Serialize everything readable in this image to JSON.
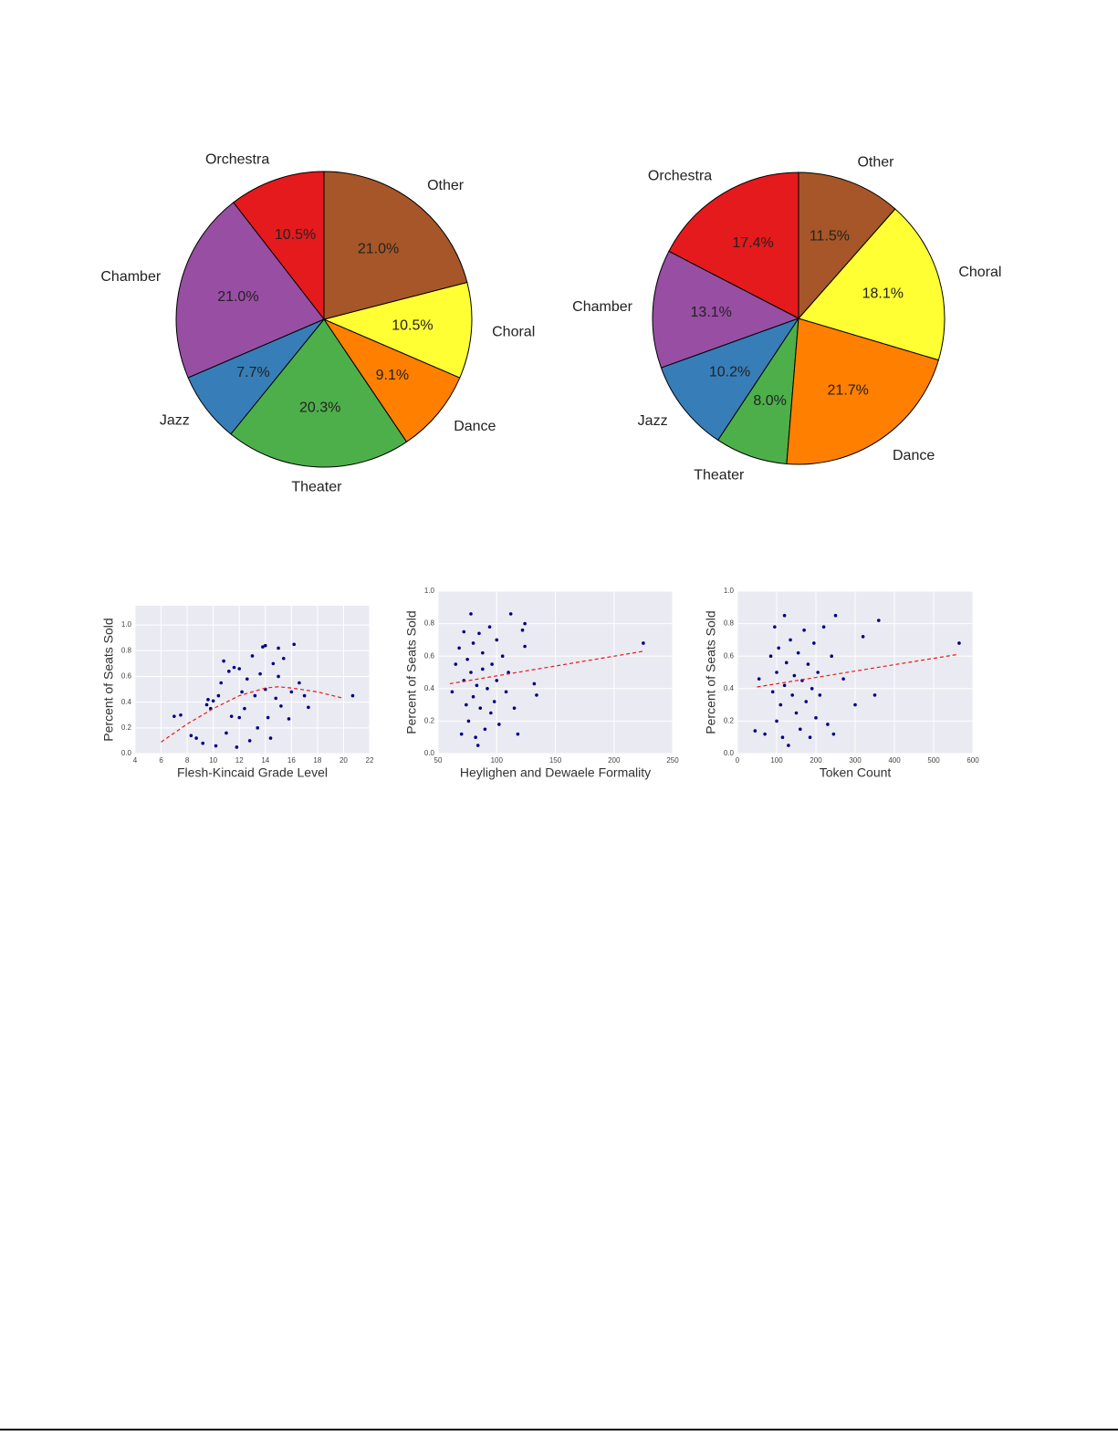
{
  "chart_data": [
    {
      "type": "pie",
      "categories": [
        "Orchestra",
        "Chamber",
        "Jazz",
        "Theater",
        "Dance",
        "Choral",
        "Other"
      ],
      "values": [
        10.5,
        21.0,
        7.7,
        20.3,
        9.1,
        10.5,
        21.0
      ],
      "value_labels": [
        "10.5%",
        "21.0%",
        "7.7%",
        "20.3%",
        "9.1%",
        "10.5%",
        "21.0%"
      ],
      "colors": [
        "#e41a1c",
        "#984ea3",
        "#377eb8",
        "#4daf4a",
        "#ff7f00",
        "#ffff33",
        "#a65628"
      ]
    },
    {
      "type": "pie",
      "categories": [
        "Orchestra",
        "Chamber",
        "Jazz",
        "Theater",
        "Dance",
        "Choral",
        "Other"
      ],
      "values": [
        17.4,
        13.1,
        10.2,
        8.0,
        21.7,
        18.1,
        11.5
      ],
      "value_labels": [
        "17.4%",
        "13.1%",
        "10.2%",
        "8.0%",
        "21.7%",
        "18.1%",
        "11.5%"
      ],
      "colors": [
        "#e41a1c",
        "#984ea3",
        "#377eb8",
        "#4daf4a",
        "#ff7f00",
        "#ffff33",
        "#a65628"
      ]
    },
    {
      "type": "scatter",
      "xlabel": "Flesh-Kincaid Grade Level",
      "ylabel": "Percent of Seats Sold",
      "xlim": [
        4,
        22
      ],
      "xticks": [
        4,
        6,
        8,
        10,
        12,
        14,
        16,
        18,
        20,
        22
      ],
      "ylim": [
        0,
        1.15
      ],
      "yticks": [
        {
          "value": 0,
          "label": "0.0"
        },
        0.2,
        0.4,
        0.6,
        0.8,
        {
          "value": 1,
          "label": "1.0"
        }
      ],
      "color": "#000080",
      "x": [
        7,
        7.5,
        8.3,
        8.7,
        9.2,
        9.5,
        9.6,
        9.8,
        10,
        10.2,
        10.4,
        10.6,
        10.8,
        11,
        11.2,
        11.4,
        11.6,
        11.8,
        12,
        12,
        12.2,
        12.4,
        12.6,
        12.8,
        13,
        13.2,
        13.4,
        13.6,
        13.8,
        14,
        14,
        14.2,
        14.4,
        14.6,
        14.8,
        15,
        15,
        15.2,
        15.4,
        15.8,
        16,
        16.2,
        16.6,
        17,
        17.3,
        20.7
      ],
      "y": [
        0.29,
        0.3,
        0.14,
        0.12,
        0.08,
        0.38,
        0.42,
        0.35,
        0.41,
        0.06,
        0.45,
        0.55,
        0.72,
        0.16,
        0.64,
        0.29,
        0.67,
        0.05,
        0.28,
        0.66,
        0.48,
        0.35,
        0.58,
        0.1,
        0.76,
        0.45,
        0.2,
        0.62,
        0.83,
        0.84,
        0.5,
        0.28,
        0.12,
        0.7,
        0.43,
        0.82,
        0.6,
        0.37,
        0.74,
        0.27,
        0.48,
        0.85,
        0.55,
        0.45,
        0.36,
        0.45
      ],
      "fit": {
        "color": "#e41a1c",
        "x": [
          6,
          8,
          10,
          12,
          14,
          15,
          16,
          18,
          20
        ],
        "y": [
          0.09,
          0.23,
          0.35,
          0.45,
          0.51,
          0.52,
          0.51,
          0.48,
          0.43
        ]
      }
    },
    {
      "type": "scatter",
      "xlabel": "Heylighen and Dewaele Formality",
      "ylabel": "Percent of Seats Sold",
      "xlim": [
        50,
        250
      ],
      "xticks": [
        50,
        100,
        150,
        200,
        250
      ],
      "ylim": [
        0,
        1
      ],
      "yticks": [
        {
          "value": 0,
          "label": "0.0"
        },
        0.2,
        0.4,
        0.6,
        0.8,
        {
          "value": 1,
          "label": "1.0"
        }
      ],
      "color": "#000080",
      "x": [
        62,
        65,
        68,
        70,
        72,
        72,
        74,
        75,
        76,
        78,
        78,
        80,
        80,
        82,
        83,
        84,
        85,
        86,
        88,
        88,
        90,
        92,
        94,
        95,
        96,
        98,
        100,
        100,
        102,
        105,
        108,
        110,
        112,
        115,
        118,
        122,
        124,
        124,
        132,
        134,
        225
      ],
      "y": [
        0.38,
        0.55,
        0.65,
        0.12,
        0.75,
        0.45,
        0.3,
        0.58,
        0.2,
        0.86,
        0.5,
        0.35,
        0.68,
        0.1,
        0.42,
        0.05,
        0.74,
        0.28,
        0.52,
        0.62,
        0.15,
        0.4,
        0.78,
        0.25,
        0.55,
        0.32,
        0.45,
        0.7,
        0.18,
        0.6,
        0.38,
        0.5,
        0.86,
        0.28,
        0.12,
        0.76,
        0.66,
        0.8,
        0.43,
        0.36,
        0.68
      ],
      "fit": {
        "color": "#e41a1c",
        "x": [
          60,
          225
        ],
        "y": [
          0.43,
          0.63
        ]
      }
    },
    {
      "type": "scatter",
      "xlabel": "Token Count",
      "ylabel": "Percent of Seats Sold",
      "xlim": [
        0,
        600
      ],
      "xticks": [
        0,
        100,
        200,
        300,
        400,
        500,
        600
      ],
      "ylim": [
        0,
        1
      ],
      "yticks": [
        {
          "value": 0,
          "label": "0.0"
        },
        0.2,
        0.4,
        0.6,
        0.8,
        {
          "value": 1,
          "label": "1.0"
        }
      ],
      "color": "#000080",
      "x": [
        45,
        55,
        70,
        85,
        90,
        95,
        100,
        100,
        105,
        110,
        115,
        120,
        120,
        125,
        130,
        135,
        140,
        145,
        150,
        155,
        160,
        165,
        170,
        175,
        180,
        185,
        190,
        195,
        200,
        205,
        210,
        220,
        230,
        240,
        245,
        250,
        270,
        300,
        320,
        350,
        360,
        565
      ],
      "y": [
        0.14,
        0.46,
        0.12,
        0.6,
        0.38,
        0.78,
        0.2,
        0.5,
        0.65,
        0.3,
        0.1,
        0.85,
        0.42,
        0.56,
        0.05,
        0.7,
        0.36,
        0.48,
        0.25,
        0.62,
        0.15,
        0.45,
        0.76,
        0.32,
        0.55,
        0.1,
        0.4,
        0.68,
        0.22,
        0.5,
        0.36,
        0.78,
        0.18,
        0.6,
        0.12,
        0.85,
        0.46,
        0.3,
        0.72,
        0.36,
        0.82,
        0.68
      ],
      "fit": {
        "color": "#e41a1c",
        "x": [
          50,
          560
        ],
        "y": [
          0.41,
          0.61
        ]
      }
    }
  ]
}
